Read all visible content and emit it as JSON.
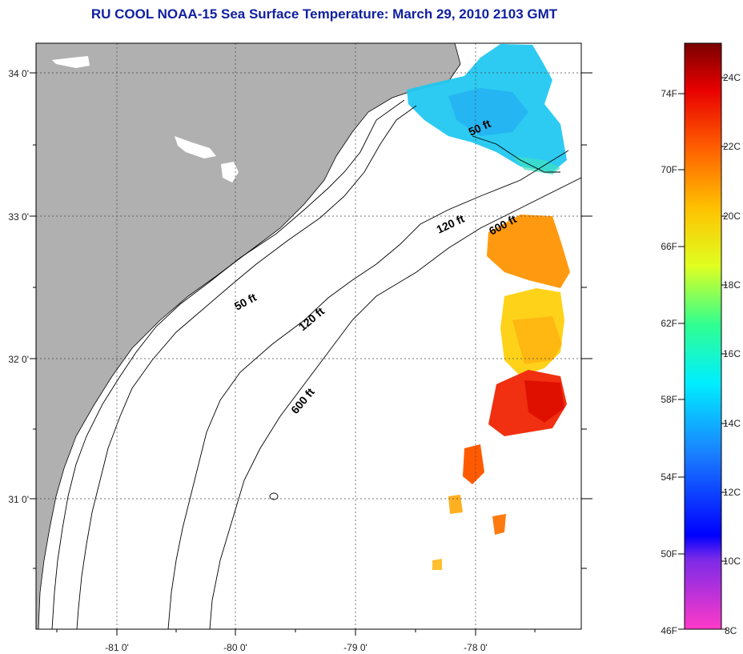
{
  "title": "RU COOL  NOAA-15  Sea Surface Temperature:  March 29, 2010 2103 GMT",
  "map": {
    "lon_labels": [
      "-81 0'",
      "-80 0'",
      "-79 0'",
      "-78 0'"
    ],
    "lat_labels": [
      "34 0'",
      "33 0'",
      "32 0'",
      "31 0'"
    ],
    "contours": {
      "shelf_50": "50 ft",
      "shelf_120": "120 ft",
      "slope_600": "600 ft"
    },
    "colors": {
      "land": "#b0b0b0",
      "water": "#ffffff",
      "gridline": "#444444"
    }
  },
  "colorbar": {
    "fahrenheit_labels": [
      "74F",
      "70F",
      "66F",
      "62F",
      "58F",
      "54F",
      "50F",
      "46F"
    ],
    "celsius_labels": [
      "24C",
      "22C",
      "20C",
      "18C",
      "16C",
      "14C",
      "12C",
      "10C",
      "8C"
    ],
    "range_c": [
      8,
      25
    ]
  }
}
